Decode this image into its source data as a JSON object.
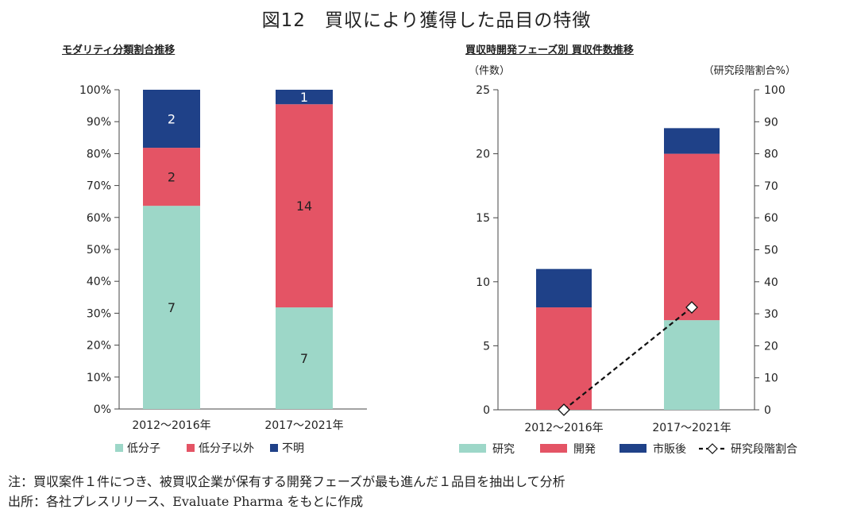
{
  "title": "図12　買収により獲得した品目の特徴",
  "colors": {
    "green": "#9dd7c8",
    "red": "#e45465",
    "navy": "#1f4188",
    "text": "#222222"
  },
  "chart_data": [
    {
      "type": "bar",
      "stacked": true,
      "subtitle": "モダリティ分類割合推移",
      "categories": [
        "2012～2016年",
        "2017～2021年"
      ],
      "series": [
        {
          "name": "低分子",
          "counts": [
            7,
            7
          ],
          "color": "#9dd7c8"
        },
        {
          "name": "低分子以外",
          "counts": [
            2,
            14
          ],
          "color": "#e45465"
        },
        {
          "name": "不明",
          "counts": [
            2,
            1
          ],
          "color": "#1f4188"
        }
      ],
      "ylim": [
        0,
        100
      ],
      "yticks": [
        "0%",
        "10%",
        "20%",
        "30%",
        "40%",
        "50%",
        "60%",
        "70%",
        "80%",
        "90%",
        "100%"
      ],
      "legend": "bottom"
    },
    {
      "type": "bar",
      "stacked": true,
      "subtitle": "買収時開発フェーズ別 買収件数推移",
      "categories": [
        "2012～2016年",
        "2017～2021年"
      ],
      "series": [
        {
          "name": "研究",
          "values": [
            0,
            7
          ],
          "color": "#9dd7c8"
        },
        {
          "name": "開発",
          "values": [
            8,
            13
          ],
          "color": "#e45465"
        },
        {
          "name": "市販後",
          "values": [
            3,
            2
          ],
          "color": "#1f4188"
        }
      ],
      "line": {
        "name": "研究段階割合",
        "values": [
          0,
          32
        ],
        "axis": "right"
      },
      "ylabel": "（件数）",
      "ylabel_right": "（研究段階割合%）",
      "ylim": [
        0,
        25
      ],
      "yticks": [
        "0",
        "5",
        "10",
        "15",
        "20",
        "25"
      ],
      "ylim_right": [
        0,
        100
      ],
      "yticks_right": [
        "0",
        "10",
        "20",
        "30",
        "40",
        "50",
        "60",
        "70",
        "80",
        "90",
        "100"
      ],
      "legend": "bottom"
    }
  ],
  "notes": [
    "注：買収案件１件につき、被買収企業が保有する開発フェーズが最も進んだ１品目を抽出して分析",
    "出所：各社プレスリリース、Evaluate Pharma をもとに作成"
  ]
}
